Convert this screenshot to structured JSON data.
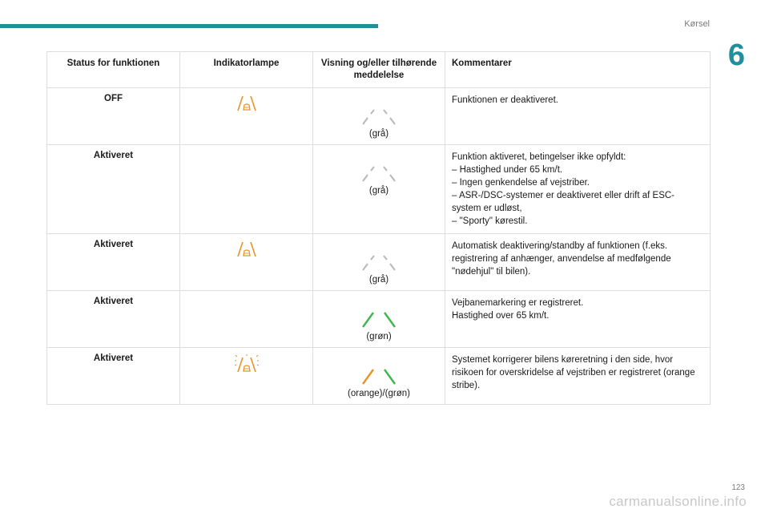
{
  "header": {
    "section": "Kørsel",
    "chapter": "6"
  },
  "footer": {
    "page": "123",
    "watermark": "carmanualsonline.info"
  },
  "colors": {
    "accent": "#1f8f9e",
    "orange": "#e8932a",
    "grey": "#b8b8b8",
    "green": "#3cb84a"
  },
  "table": {
    "headers": {
      "status": "Status for funktionen",
      "lamp": "Indikatorlampe",
      "display": "Visning og/eller tilhørende meddelelse",
      "comment": "Kommentarer"
    },
    "rows": [
      {
        "status": "OFF",
        "lamp": "lane-warning-orange-icon",
        "display_caption": "(grå)",
        "display_colors": [
          "grey",
          "grey"
        ],
        "comment": [
          "Funktionen er deaktiveret."
        ]
      },
      {
        "status": "Aktiveret",
        "lamp": "",
        "display_caption": "(grå)",
        "display_colors": [
          "grey",
          "grey"
        ],
        "comment": [
          "Funktion aktiveret, betingelser ikke opfyldt:",
          "–  Hastighed under 65 km/t.",
          "–  Ingen genkendelse af vejstriber.",
          "–  ASR-/DSC-systemer er deaktiveret eller drift af ESC-system er udløst,",
          "–  \"Sporty\" kørestil."
        ]
      },
      {
        "status": "Aktiveret",
        "lamp": "lane-warning-orange-icon",
        "display_caption": "(grå)",
        "display_colors": [
          "grey",
          "grey"
        ],
        "comment": [
          "Automatisk deaktivering/standby af funktionen (f.eks. registrering af anhænger, anvendelse af medfølgende \"nødehjul\" til bilen)."
        ]
      },
      {
        "status": "Aktiveret",
        "lamp": "",
        "display_caption": "(grøn)",
        "display_colors": [
          "green",
          "green"
        ],
        "comment": [
          "Vejbanemarkering er registreret.",
          "Hastighed over 65 km/t."
        ]
      },
      {
        "status": "Aktiveret",
        "lamp": "lane-correction-orange-icon",
        "display_caption": "(orange)/(grøn)",
        "display_colors": [
          "orange",
          "green"
        ],
        "comment": [
          "Systemet korrigerer bilens køreretning i den side, hvor risikoen for overskridelse af vejstriben er registreret (orange stribe)."
        ]
      }
    ]
  }
}
